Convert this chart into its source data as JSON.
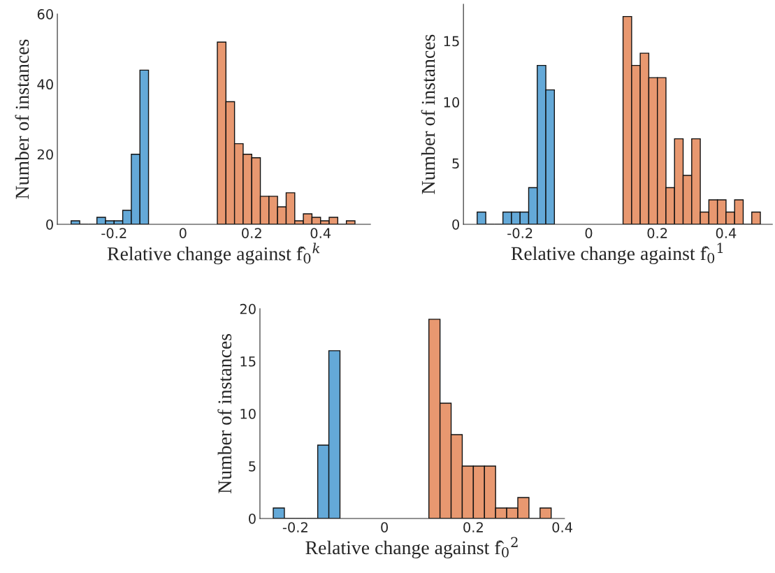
{
  "chart_data": [
    {
      "type": "histogram",
      "xlabel": "Relative change against f̂$_{0}$$^{k}$",
      "ylabel": "Number of instances",
      "xlim": [
        -0.365,
        0.545
      ],
      "xticks": [
        -0.2,
        0,
        0.2,
        0.4
      ],
      "ylim": [
        0,
        60
      ],
      "yticks": [
        0,
        20,
        40,
        60
      ],
      "bins": [
        -0.325,
        -0.3,
        -0.275,
        -0.25,
        -0.225,
        -0.2,
        -0.175,
        -0.15,
        -0.125,
        -0.1,
        -0.075,
        -0.05,
        -0.025,
        0,
        0.025,
        0.05,
        0.075,
        0.1,
        0.125,
        0.15,
        0.175,
        0.2,
        0.225,
        0.25,
        0.275,
        0.3,
        0.325,
        0.35,
        0.375,
        0.4,
        0.425,
        0.45,
        0.475,
        0.5
      ],
      "values": [
        1,
        0,
        0,
        2,
        1,
        1,
        4,
        20,
        44,
        null,
        null,
        null,
        null,
        null,
        null,
        null,
        null,
        52,
        35,
        23,
        20,
        19,
        8,
        8,
        5,
        9,
        1,
        3,
        2,
        1,
        2,
        0,
        1
      ],
      "colors": [
        "#64a9d8",
        "#111111",
        "#111111",
        "#64a9d8",
        "#64a9d8",
        "#64a9d8",
        "#64a9d8",
        "#64a9d8",
        "#64a9d8",
        null,
        null,
        null,
        null,
        null,
        null,
        null,
        null,
        "#e89870",
        "#e89870",
        "#e89870",
        "#e89870",
        "#e89870",
        "#e89870",
        "#e89870",
        "#e89870",
        "#e89870",
        "#e89870",
        "#e89870",
        "#e89870",
        "#e89870",
        "#e89870",
        "#111111",
        "#e89870"
      ]
    },
    {
      "type": "histogram",
      "xlabel": "Relative change against f̂$_{0}$$^{1}$",
      "ylabel": "Number of instances",
      "xlim": [
        -0.365,
        0.535
      ],
      "xticks": [
        -0.2,
        0,
        0.2,
        0.4
      ],
      "ylim": [
        0,
        18
      ],
      "yticks": [
        0,
        5,
        10,
        15
      ],
      "bins": [
        -0.325,
        -0.3,
        -0.275,
        -0.25,
        -0.225,
        -0.2,
        -0.175,
        -0.15,
        -0.125,
        -0.1,
        -0.075,
        -0.05,
        -0.025,
        0,
        0.025,
        0.05,
        0.075,
        0.1,
        0.125,
        0.15,
        0.175,
        0.2,
        0.225,
        0.25,
        0.275,
        0.3,
        0.325,
        0.35,
        0.375,
        0.4,
        0.425,
        0.45,
        0.475,
        0.5
      ],
      "values": [
        1,
        0,
        0,
        1,
        1,
        1,
        3,
        13,
        11,
        null,
        null,
        null,
        null,
        null,
        null,
        null,
        null,
        17,
        13,
        14,
        12,
        12,
        3,
        7,
        4,
        7,
        1,
        2,
        2,
        1,
        2,
        0,
        1
      ],
      "colors": [
        "#64a9d8",
        "#111111",
        "#111111",
        "#64a9d8",
        "#64a9d8",
        "#64a9d8",
        "#64a9d8",
        "#64a9d8",
        "#64a9d8",
        null,
        null,
        null,
        null,
        null,
        null,
        null,
        null,
        "#e89870",
        "#e89870",
        "#e89870",
        "#e89870",
        "#e89870",
        "#e89870",
        "#e89870",
        "#e89870",
        "#e89870",
        "#e89870",
        "#e89870",
        "#e89870",
        "#e89870",
        "#e89870",
        "#111111",
        "#e89870"
      ]
    },
    {
      "type": "histogram",
      "xlabel": "Relative change against f̂$_{0}$$^{2}$",
      "ylabel": "Number of instances",
      "xlim": [
        -0.28,
        0.405
      ],
      "xticks": [
        -0.2,
        0,
        0.2,
        0.4
      ],
      "ylim": [
        0,
        20
      ],
      "yticks": [
        0,
        5,
        10,
        15,
        20
      ],
      "bins": [
        -0.25,
        -0.225,
        -0.2,
        -0.175,
        -0.15,
        -0.125,
        -0.1,
        -0.075,
        -0.05,
        -0.025,
        0,
        0.025,
        0.05,
        0.075,
        0.1,
        0.125,
        0.15,
        0.175,
        0.2,
        0.225,
        0.25,
        0.275,
        0.3,
        0.325,
        0.35,
        0.375
      ],
      "values": [
        1,
        0,
        0,
        0,
        7,
        16,
        null,
        null,
        null,
        null,
        null,
        null,
        null,
        null,
        19,
        11,
        8,
        5,
        5,
        5,
        1,
        1,
        2,
        0,
        1
      ],
      "colors": [
        "#64a9d8",
        "#111111",
        "#111111",
        "#111111",
        "#64a9d8",
        "#64a9d8",
        null,
        null,
        null,
        null,
        null,
        null,
        null,
        null,
        "#e89870",
        "#e89870",
        "#e89870",
        "#e89870",
        "#e89870",
        "#e89870",
        "#e89870",
        "#e89870",
        "#e89870",
        "#111111",
        "#e89870"
      ]
    }
  ]
}
